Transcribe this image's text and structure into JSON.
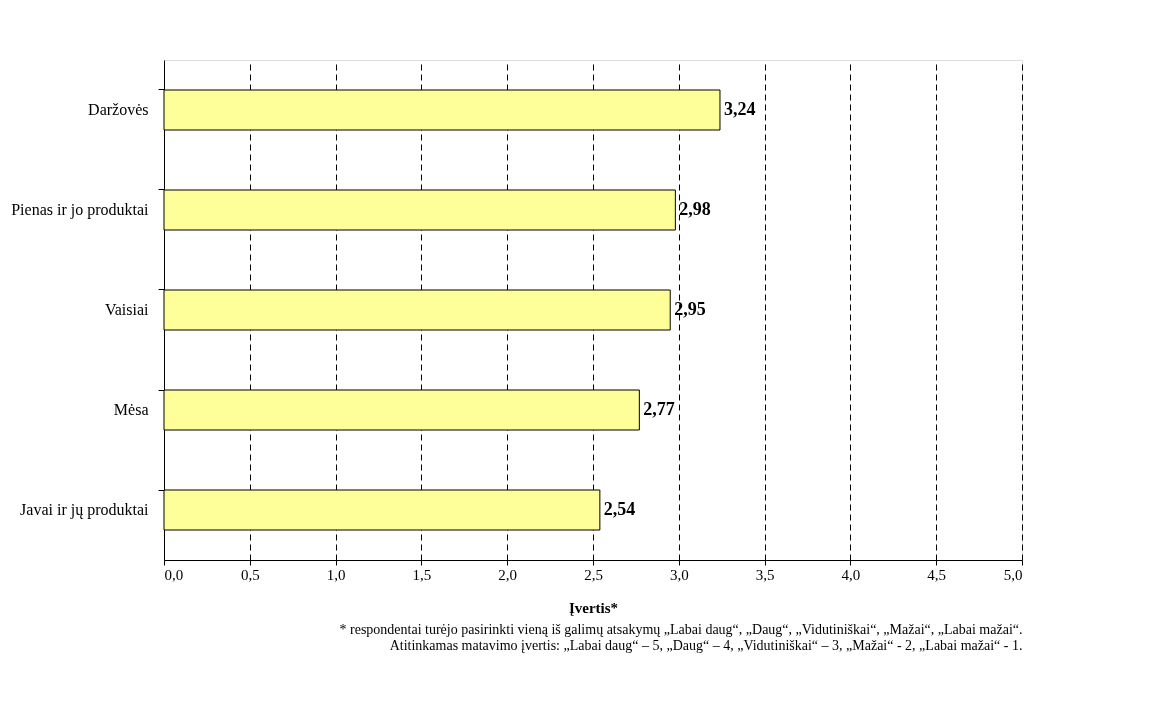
{
  "chart_data": {
    "type": "bar",
    "orientation": "horizontal",
    "categories": [
      "Daržovės",
      "Pienas ir jo produktai",
      "Vaisiai",
      "Mėsa",
      "Javai ir jų produktai"
    ],
    "values": [
      3.24,
      2.98,
      2.95,
      2.77,
      2.54
    ],
    "value_labels": [
      "3,24",
      "2,98",
      "2,95",
      "2,77",
      "2,54"
    ],
    "color": "#ffff99",
    "xlim": [
      0,
      5
    ],
    "xticks": [
      {
        "value": 0,
        "label": "0,0"
      },
      {
        "value": 0.5,
        "label": "0,5"
      },
      {
        "value": 1,
        "label": "1,0"
      },
      {
        "value": 1.5,
        "label": "1,5"
      },
      {
        "value": 2,
        "label": "2,0"
      },
      {
        "value": 2.5,
        "label": "2,5"
      },
      {
        "value": 3,
        "label": "3,0"
      },
      {
        "value": 3.5,
        "label": "3,5"
      },
      {
        "value": 4,
        "label": "4,0"
      },
      {
        "value": 4.5,
        "label": "4,5"
      },
      {
        "value": 5,
        "label": "5,0"
      }
    ],
    "grid": "x",
    "xlabel": "Įvertis*",
    "annotations": [
      "* respondentai turėjo pasirinkti vieną iš galimų atsakymų „Labai daug“, „Daug“, „Vidutiniškai“, „Mažai“, „Labai mažai“.",
      "Atitinkamas matavimo įvertis: „Labai daug“ – 5, „Daug“ – 4, „Vidutiniškai“ – 3, „Mažai“ - 2, „Labai mažai“ - 1."
    ]
  }
}
